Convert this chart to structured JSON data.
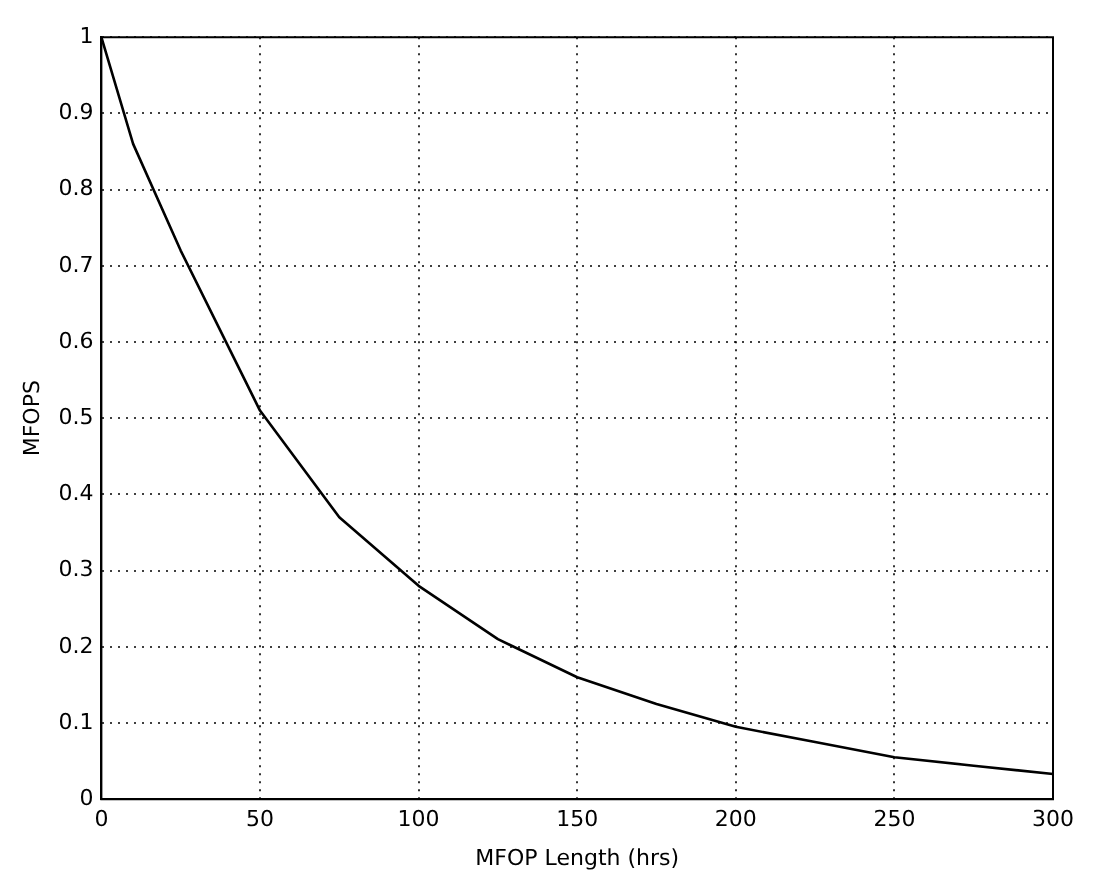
{
  "chart_data": {
    "type": "line",
    "xlabel": "MFOP Length (hrs)",
    "ylabel": "MFOPS",
    "x": [
      0,
      10,
      25,
      50,
      75,
      100,
      125,
      150,
      175,
      200,
      225,
      250,
      275,
      300
    ],
    "series": [
      {
        "color": "#000000",
        "values": [
          1.0,
          0.86,
          0.72,
          0.51,
          0.37,
          0.28,
          0.21,
          0.16,
          0.125,
          0.095,
          0.075,
          0.055,
          0.044,
          0.033
        ]
      }
    ],
    "xlim": [
      0,
      300
    ],
    "xticks": [
      0,
      50,
      100,
      150,
      200,
      250,
      300
    ],
    "ylim": [
      0,
      1
    ],
    "yticks": [
      0,
      0.1,
      0.2,
      0.3,
      0.4,
      0.5,
      0.6,
      0.7,
      0.8,
      0.9,
      1
    ],
    "grid": true,
    "legend": false,
    "marker": "none",
    "line_style": "solid"
  }
}
